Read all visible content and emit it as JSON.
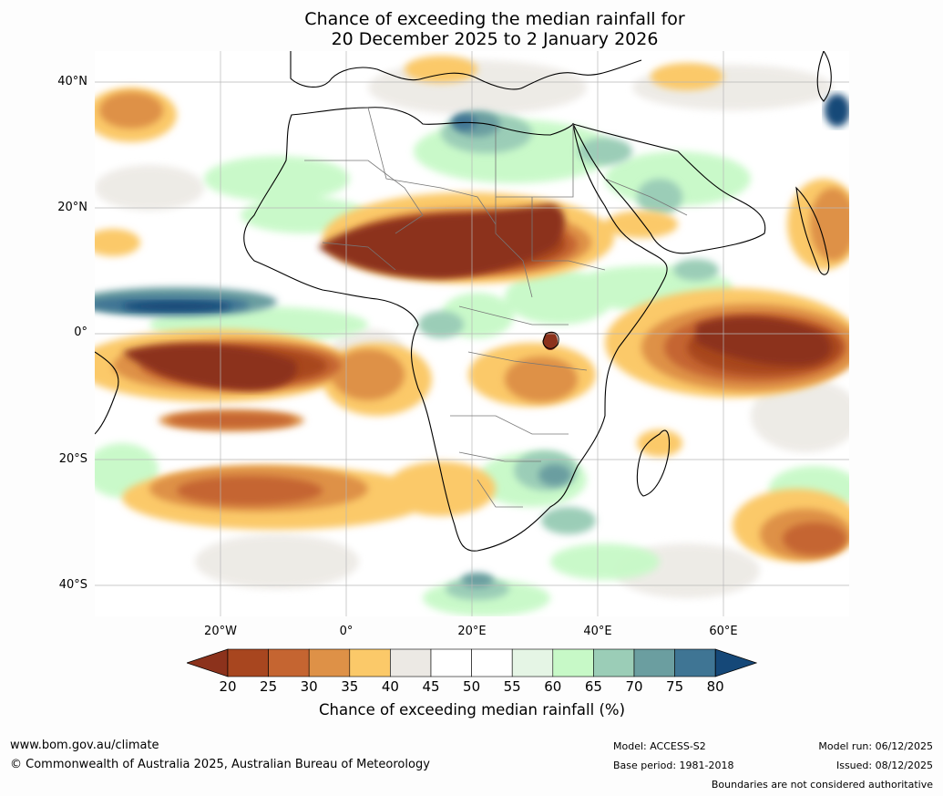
{
  "title": {
    "line1": "Chance of exceeding the median rainfall for",
    "line2": "20 December 2025 to 2 January 2026"
  },
  "map": {
    "region": "Africa",
    "lon_range": [
      -40,
      80
    ],
    "lat_range": [
      -45,
      45
    ],
    "lat_labels": [
      "40°N",
      "20°N",
      "0°",
      "20°S",
      "40°S"
    ],
    "lat_values": [
      40,
      20,
      0,
      -20,
      -40
    ],
    "lon_labels": [
      "20°W",
      "0°",
      "20°E",
      "40°E",
      "60°E"
    ],
    "lon_values": [
      -20,
      0,
      20,
      40,
      60
    ],
    "regions": [
      {
        "name": "Sahel dry anomaly",
        "chance": 20,
        "lon": 12,
        "lat": 13
      },
      {
        "name": "Equatorial Atlantic dry band",
        "chance": 20,
        "lon": -24,
        "lat": -5
      },
      {
        "name": "Equatorial Atlantic wet band",
        "chance": 80,
        "lon": -28,
        "lat": 3
      },
      {
        "name": "Western Indian Ocean dry band",
        "chance": 25,
        "lon": 66,
        "lat": -1
      },
      {
        "name": "Libya wet patch",
        "chance": 75,
        "lon": 19,
        "lat": 33
      },
      {
        "name": "South Atlantic dry patches",
        "chance": 30,
        "lon": -18,
        "lat": -25
      },
      {
        "name": "Southern Africa moist area",
        "chance": 65,
        "lon": 28,
        "lat": -23
      }
    ]
  },
  "colorbar": {
    "ticks": [
      "20",
      "25",
      "30",
      "35",
      "40",
      "45",
      "50",
      "55",
      "60",
      "65",
      "70",
      "75",
      "80"
    ],
    "colors": [
      "#8c321c",
      "#a8461f",
      "#c56531",
      "#de9147",
      "#fbc969",
      "#ece9e4",
      "#ffffff",
      "#ffffff",
      "#e5f5e5",
      "#c7f9c7",
      "#9bcdb7",
      "#6b9ea0",
      "#3f7594",
      "#154878"
    ],
    "title": "Chance of exceeding median rainfall (%)"
  },
  "footer": {
    "website": "www.bom.gov.au/climate",
    "copyright": "© Commonwealth of Australia 2025, Australian Bureau of Meteorology",
    "model": "Model: ACCESS-S2",
    "base_period": "Base period: 1981-2018",
    "model_run": "Model run: 06/12/2025",
    "issued": "Issued: 08/12/2025",
    "disclaimer": "Boundaries are not considered authoritative"
  }
}
